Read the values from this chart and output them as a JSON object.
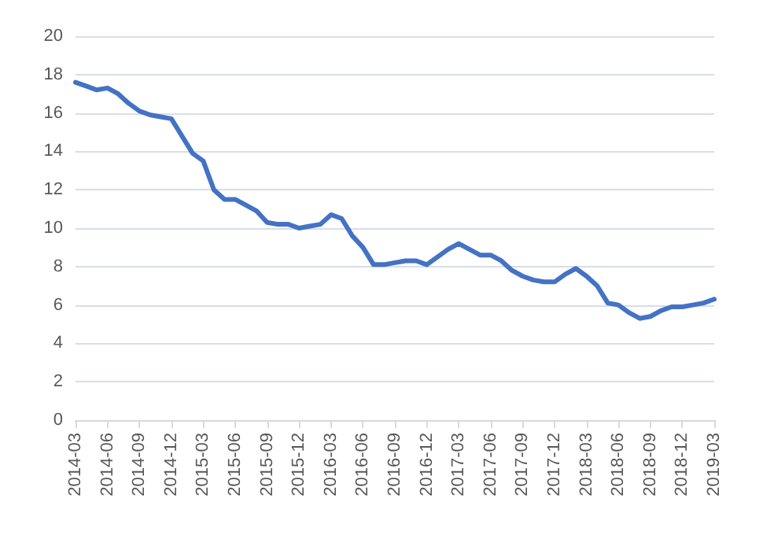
{
  "chart_data": {
    "type": "line",
    "categories": [
      "2014-03",
      null,
      null,
      "2014-06",
      null,
      null,
      "2014-09",
      null,
      null,
      "2014-12",
      null,
      null,
      "2015-03",
      null,
      null,
      "2015-06",
      null,
      null,
      "2015-09",
      null,
      null,
      "2015-12",
      null,
      null,
      "2016-03",
      null,
      null,
      "2016-06",
      null,
      null,
      "2016-09",
      null,
      null,
      "2016-12",
      null,
      null,
      "2017-03",
      null,
      null,
      "2017-06",
      null,
      null,
      "2017-09",
      null,
      null,
      "2017-12",
      null,
      null,
      "2018-03",
      null,
      null,
      "2018-06",
      null,
      null,
      "2018-09",
      null,
      null,
      "2018-12",
      null,
      null,
      "2019-03"
    ],
    "values": [
      17.6,
      17.4,
      17.2,
      17.3,
      17.0,
      16.5,
      16.1,
      15.9,
      15.8,
      15.7,
      14.8,
      13.9,
      13.5,
      12.0,
      11.5,
      11.5,
      11.2,
      10.9,
      10.3,
      10.2,
      10.2,
      10.0,
      10.1,
      10.2,
      10.7,
      10.5,
      9.6,
      9.0,
      8.1,
      8.1,
      8.2,
      8.3,
      8.3,
      8.1,
      8.5,
      8.9,
      9.2,
      8.9,
      8.6,
      8.6,
      8.3,
      7.8,
      7.5,
      7.3,
      7.2,
      7.2,
      7.6,
      7.9,
      7.5,
      7.0,
      6.1,
      6.0,
      5.6,
      5.3,
      5.4,
      5.7,
      5.9,
      5.9,
      6.0,
      6.1,
      6.3
    ],
    "color": "#4472c4",
    "ylim": [
      0,
      20
    ],
    "yticks": [
      0,
      2,
      4,
      6,
      8,
      10,
      12,
      14,
      16,
      18,
      20
    ],
    "grid": "y",
    "marker": "none",
    "line_style": "solid"
  }
}
